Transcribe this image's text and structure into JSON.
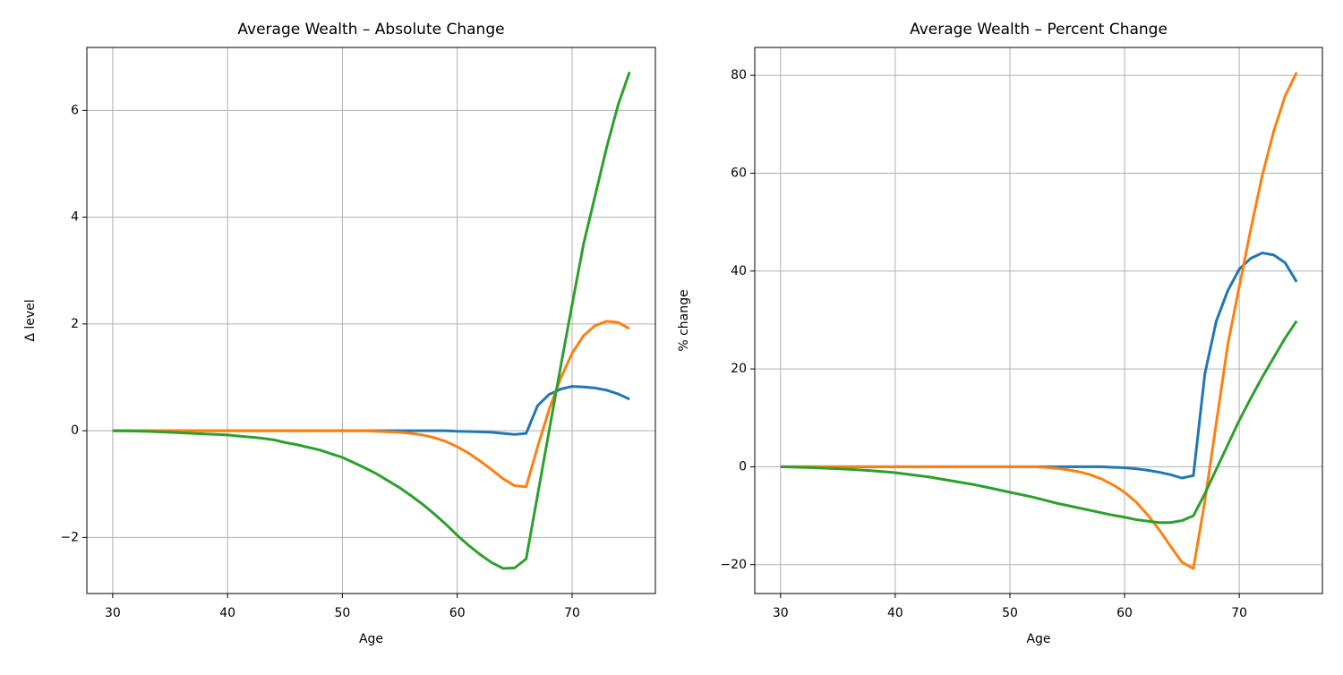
{
  "chart_data": [
    {
      "type": "line",
      "title": "Average Wealth – Absolute Change",
      "xlabel": "Age",
      "ylabel": "Δ level",
      "x": [
        30,
        31,
        32,
        33,
        34,
        35,
        36,
        37,
        38,
        39,
        40,
        41,
        42,
        43,
        44,
        45,
        46,
        47,
        48,
        49,
        50,
        51,
        52,
        53,
        54,
        55,
        56,
        57,
        58,
        59,
        60,
        61,
        62,
        63,
        64,
        65,
        66,
        67,
        68,
        69,
        70,
        71,
        72,
        73,
        74,
        75
      ],
      "series": [
        {
          "color": "#1f77b4",
          "values": [
            0,
            0,
            0,
            0,
            0,
            0,
            0,
            0,
            0,
            0,
            0,
            0,
            0,
            0,
            0,
            0,
            0,
            0,
            0,
            0,
            0,
            0,
            0,
            0,
            0,
            0,
            0,
            0,
            0,
            0,
            -0.01,
            -0.015,
            -0.02,
            -0.03,
            -0.05,
            -0.07,
            -0.05,
            0.47,
            0.68,
            0.78,
            0.83,
            0.82,
            0.8,
            0.76,
            0.69,
            0.59
          ]
        },
        {
          "color": "#ff7f0e",
          "values": [
            0,
            0,
            0,
            0,
            0,
            0,
            0,
            0,
            0,
            0,
            0,
            0,
            0,
            0,
            0,
            0,
            0,
            0,
            0,
            0,
            0,
            0,
            0,
            -0.01,
            -0.02,
            -0.03,
            -0.05,
            -0.08,
            -0.13,
            -0.2,
            -0.3,
            -0.42,
            -0.57,
            -0.73,
            -0.9,
            -1.03,
            -1.05,
            -0.3,
            0.4,
            0.98,
            1.45,
            1.78,
            1.97,
            2.05,
            2.03,
            1.91
          ]
        },
        {
          "color": "#2ca02c",
          "values": [
            0,
            -0.003,
            -0.007,
            -0.013,
            -0.02,
            -0.03,
            -0.04,
            -0.05,
            -0.06,
            -0.07,
            -0.08,
            -0.1,
            -0.12,
            -0.14,
            -0.17,
            -0.22,
            -0.26,
            -0.31,
            -0.36,
            -0.43,
            -0.5,
            -0.6,
            -0.7,
            -0.81,
            -0.94,
            -1.07,
            -1.22,
            -1.38,
            -1.56,
            -1.75,
            -1.96,
            -2.15,
            -2.32,
            -2.47,
            -2.58,
            -2.57,
            -2.4,
            -1.2,
            0.0,
            1.2,
            2.36,
            3.5,
            4.4,
            5.3,
            6.1,
            6.72
          ]
        }
      ],
      "xlim": [
        27.75,
        77.25
      ],
      "ylim": [
        -3.05,
        7.18
      ],
      "xticks": [
        30,
        40,
        50,
        60,
        70
      ],
      "yticks": [
        {
          "value": -2,
          "label": "−2"
        },
        0,
        2,
        4,
        6
      ],
      "grid": true
    },
    {
      "type": "line",
      "title": "Average Wealth – Percent Change",
      "xlabel": "Age",
      "ylabel": "% change",
      "x": [
        30,
        31,
        32,
        33,
        34,
        35,
        36,
        37,
        38,
        39,
        40,
        41,
        42,
        43,
        44,
        45,
        46,
        47,
        48,
        49,
        50,
        51,
        52,
        53,
        54,
        55,
        56,
        57,
        58,
        59,
        60,
        61,
        62,
        63,
        64,
        65,
        66,
        67,
        68,
        69,
        70,
        71,
        72,
        73,
        74,
        75
      ],
      "series": [
        {
          "color": "#1f77b4",
          "values": [
            0,
            0,
            0,
            0,
            0,
            0,
            0,
            0,
            0,
            0,
            0,
            0,
            0,
            0,
            0,
            0,
            0,
            0,
            0,
            0,
            0,
            0,
            0,
            0,
            0,
            0,
            0,
            0,
            0,
            -0.1,
            -0.2,
            -0.4,
            -0.7,
            -1.1,
            -1.6,
            -2.3,
            -1.8,
            19,
            29.8,
            36,
            40.4,
            42.6,
            43.7,
            43.3,
            41.7,
            37.8
          ]
        },
        {
          "color": "#ff7f0e",
          "values": [
            0,
            0,
            0,
            0,
            0,
            0,
            0,
            0,
            0,
            0,
            0,
            0,
            0,
            0,
            0,
            0,
            0,
            0,
            0,
            0,
            0,
            0,
            0,
            -0.1,
            -0.3,
            -0.6,
            -1.0,
            -1.6,
            -2.5,
            -3.7,
            -5.2,
            -7.2,
            -9.8,
            -12.8,
            -16.2,
            -19.5,
            -20.8,
            -7,
            9,
            25,
            36.8,
            48.5,
            59.5,
            68.5,
            75.8,
            80.6
          ]
        },
        {
          "color": "#2ca02c",
          "values": [
            0,
            -0.05,
            -0.12,
            -0.2,
            -0.3,
            -0.4,
            -0.52,
            -0.65,
            -0.82,
            -1.0,
            -1.2,
            -1.5,
            -1.8,
            -2.1,
            -2.5,
            -2.9,
            -3.3,
            -3.7,
            -4.2,
            -4.7,
            -5.2,
            -5.7,
            -6.2,
            -6.8,
            -7.4,
            -7.9,
            -8.4,
            -8.9,
            -9.4,
            -9.9,
            -10.3,
            -10.8,
            -11.1,
            -11.4,
            -11.4,
            -11,
            -10,
            -5.5,
            -0.5,
            4.5,
            9.5,
            14,
            18.3,
            22.3,
            26.3,
            29.8
          ]
        }
      ],
      "xlim": [
        27.75,
        77.25
      ],
      "ylim": [
        -25.9,
        85.7
      ],
      "xticks": [
        30,
        40,
        50,
        60,
        70
      ],
      "yticks": [
        {
          "value": -20,
          "label": "−20"
        },
        0,
        20,
        40,
        60,
        80
      ],
      "grid": true
    }
  ]
}
